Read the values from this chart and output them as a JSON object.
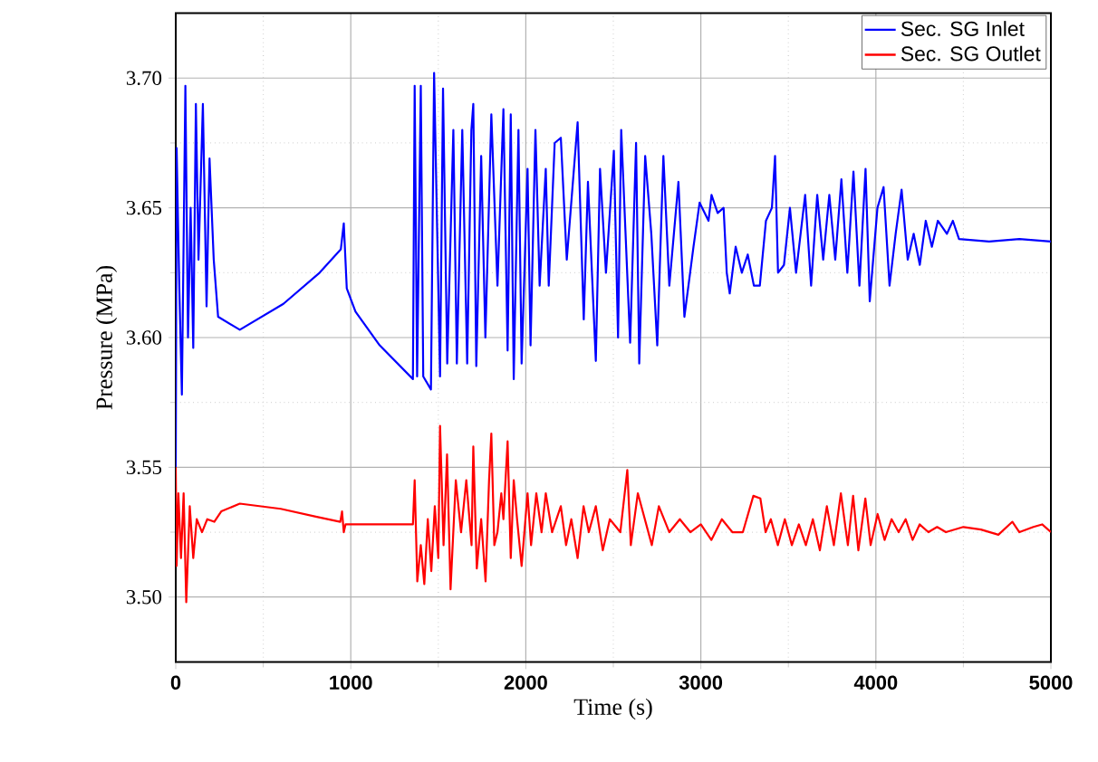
{
  "chart_data": {
    "type": "line",
    "xlabel": "Time (s)",
    "ylabel": "Pressure (MPa)",
    "xlim": [
      0,
      5000
    ],
    "ylim": [
      3.475,
      3.725
    ],
    "xticks": [
      0,
      1000,
      2000,
      3000,
      4000,
      5000
    ],
    "yticks": [
      {
        "value": 3.5,
        "label": "3.50"
      },
      {
        "value": 3.55,
        "label": "3.55"
      },
      {
        "value": 3.6,
        "label": "3.60"
      },
      {
        "value": 3.65,
        "label": "3.65"
      },
      {
        "value": 3.7,
        "label": "3.70"
      }
    ],
    "grid": true,
    "legend": "top right",
    "marker": "none",
    "line_style": "solid",
    "series": [
      {
        "name": "Sec. SG Inlet",
        "color": "#0000ff",
        "x": [
          0,
          5,
          20,
          35,
          55,
          70,
          85,
          100,
          115,
          130,
          155,
          176,
          193,
          217,
          242,
          366,
          615,
          822,
          943,
          960,
          977,
          1027,
          1165,
          1355,
          1365,
          1379,
          1400,
          1414,
          1458,
          1476,
          1510,
          1527,
          1551,
          1586,
          1606,
          1637,
          1665,
          1689,
          1700,
          1717,
          1745,
          1769,
          1803,
          1838,
          1872,
          1896,
          1914,
          1931,
          1958,
          1976,
          2010,
          2027,
          2055,
          2079,
          2114,
          2131,
          2165,
          2200,
          2234,
          2296,
          2331,
          2355,
          2400,
          2424,
          2458,
          2503,
          2527,
          2545,
          2596,
          2630,
          2648,
          2682,
          2717,
          2751,
          2786,
          2820,
          2872,
          2906,
          2958,
          2993,
          3044,
          3061,
          3096,
          3130,
          3148,
          3165,
          3199,
          3234,
          3268,
          3303,
          3337,
          3372,
          3406,
          3424,
          3441,
          3475,
          3509,
          3544,
          3596,
          3630,
          3665,
          3699,
          3734,
          3768,
          3803,
          3837,
          3872,
          3906,
          3941,
          3965,
          4009,
          4044,
          4078,
          4113,
          4147,
          4182,
          4216,
          4251,
          4285,
          4320,
          4354,
          4406,
          4440,
          4475,
          4647,
          4820,
          5000
        ],
        "values": [
          3.55,
          3.673,
          3.62,
          3.578,
          3.697,
          3.6,
          3.65,
          3.596,
          3.69,
          3.63,
          3.69,
          3.612,
          3.669,
          3.63,
          3.608,
          3.603,
          3.613,
          3.625,
          3.634,
          3.644,
          3.619,
          3.61,
          3.597,
          3.584,
          3.697,
          3.585,
          3.697,
          3.585,
          3.58,
          3.702,
          3.585,
          3.696,
          3.59,
          3.68,
          3.59,
          3.68,
          3.59,
          3.68,
          3.69,
          3.589,
          3.67,
          3.6,
          3.686,
          3.62,
          3.688,
          3.595,
          3.686,
          3.584,
          3.68,
          3.59,
          3.665,
          3.597,
          3.68,
          3.62,
          3.665,
          3.62,
          3.675,
          3.677,
          3.63,
          3.683,
          3.607,
          3.66,
          3.591,
          3.665,
          3.625,
          3.672,
          3.6,
          3.68,
          3.598,
          3.675,
          3.59,
          3.67,
          3.64,
          3.597,
          3.67,
          3.62,
          3.66,
          3.608,
          3.635,
          3.652,
          3.645,
          3.655,
          3.648,
          3.65,
          3.625,
          3.617,
          3.635,
          3.625,
          3.632,
          3.62,
          3.62,
          3.645,
          3.65,
          3.67,
          3.625,
          3.628,
          3.65,
          3.625,
          3.655,
          3.62,
          3.655,
          3.63,
          3.655,
          3.63,
          3.661,
          3.625,
          3.664,
          3.62,
          3.665,
          3.614,
          3.65,
          3.658,
          3.62,
          3.64,
          3.657,
          3.63,
          3.64,
          3.628,
          3.645,
          3.635,
          3.645,
          3.64,
          3.645,
          3.638,
          3.637,
          3.638,
          3.637
        ]
      },
      {
        "name": "Sec. SG Outlet",
        "color": "#ff0000",
        "x": [
          0,
          5,
          15,
          30,
          45,
          60,
          80,
          100,
          120,
          150,
          180,
          220,
          260,
          366,
          600,
          800,
          940,
          950,
          960,
          970,
          1100,
          1355,
          1365,
          1380,
          1400,
          1420,
          1440,
          1460,
          1480,
          1500,
          1510,
          1530,
          1550,
          1570,
          1600,
          1630,
          1660,
          1690,
          1700,
          1720,
          1745,
          1770,
          1790,
          1803,
          1820,
          1838,
          1860,
          1872,
          1896,
          1914,
          1931,
          1950,
          1976,
          2010,
          2030,
          2060,
          2090,
          2114,
          2150,
          2200,
          2230,
          2260,
          2296,
          2330,
          2360,
          2400,
          2440,
          2480,
          2540,
          2580,
          2600,
          2640,
          2680,
          2720,
          2760,
          2820,
          2880,
          2940,
          3000,
          3060,
          3120,
          3180,
          3240,
          3300,
          3340,
          3370,
          3400,
          3440,
          3480,
          3520,
          3560,
          3600,
          3640,
          3680,
          3720,
          3760,
          3800,
          3840,
          3870,
          3900,
          3940,
          3970,
          4010,
          4050,
          4090,
          4130,
          4170,
          4210,
          4250,
          4300,
          4350,
          4400,
          4500,
          4600,
          4700,
          4780,
          4820,
          4900,
          4950,
          5000
        ],
        "values": [
          3.55,
          3.512,
          3.54,
          3.515,
          3.54,
          3.498,
          3.535,
          3.515,
          3.53,
          3.525,
          3.53,
          3.529,
          3.533,
          3.536,
          3.534,
          3.531,
          3.529,
          3.533,
          3.525,
          3.528,
          3.528,
          3.528,
          3.545,
          3.506,
          3.52,
          3.505,
          3.53,
          3.51,
          3.535,
          3.515,
          3.566,
          3.52,
          3.555,
          3.503,
          3.545,
          3.525,
          3.545,
          3.52,
          3.558,
          3.511,
          3.53,
          3.506,
          3.545,
          3.563,
          3.52,
          3.525,
          3.54,
          3.53,
          3.56,
          3.515,
          3.545,
          3.53,
          3.512,
          3.54,
          3.52,
          3.54,
          3.525,
          3.54,
          3.525,
          3.535,
          3.52,
          3.53,
          3.515,
          3.535,
          3.525,
          3.535,
          3.518,
          3.53,
          3.525,
          3.549,
          3.52,
          3.54,
          3.53,
          3.52,
          3.535,
          3.525,
          3.53,
          3.525,
          3.528,
          3.522,
          3.53,
          3.525,
          3.525,
          3.539,
          3.538,
          3.525,
          3.53,
          3.52,
          3.53,
          3.52,
          3.528,
          3.52,
          3.53,
          3.518,
          3.535,
          3.52,
          3.54,
          3.52,
          3.539,
          3.518,
          3.538,
          3.52,
          3.532,
          3.522,
          3.53,
          3.525,
          3.53,
          3.522,
          3.528,
          3.525,
          3.527,
          3.525,
          3.527,
          3.526,
          3.524,
          3.529,
          3.525,
          3.527,
          3.528,
          3.525
        ]
      }
    ]
  }
}
